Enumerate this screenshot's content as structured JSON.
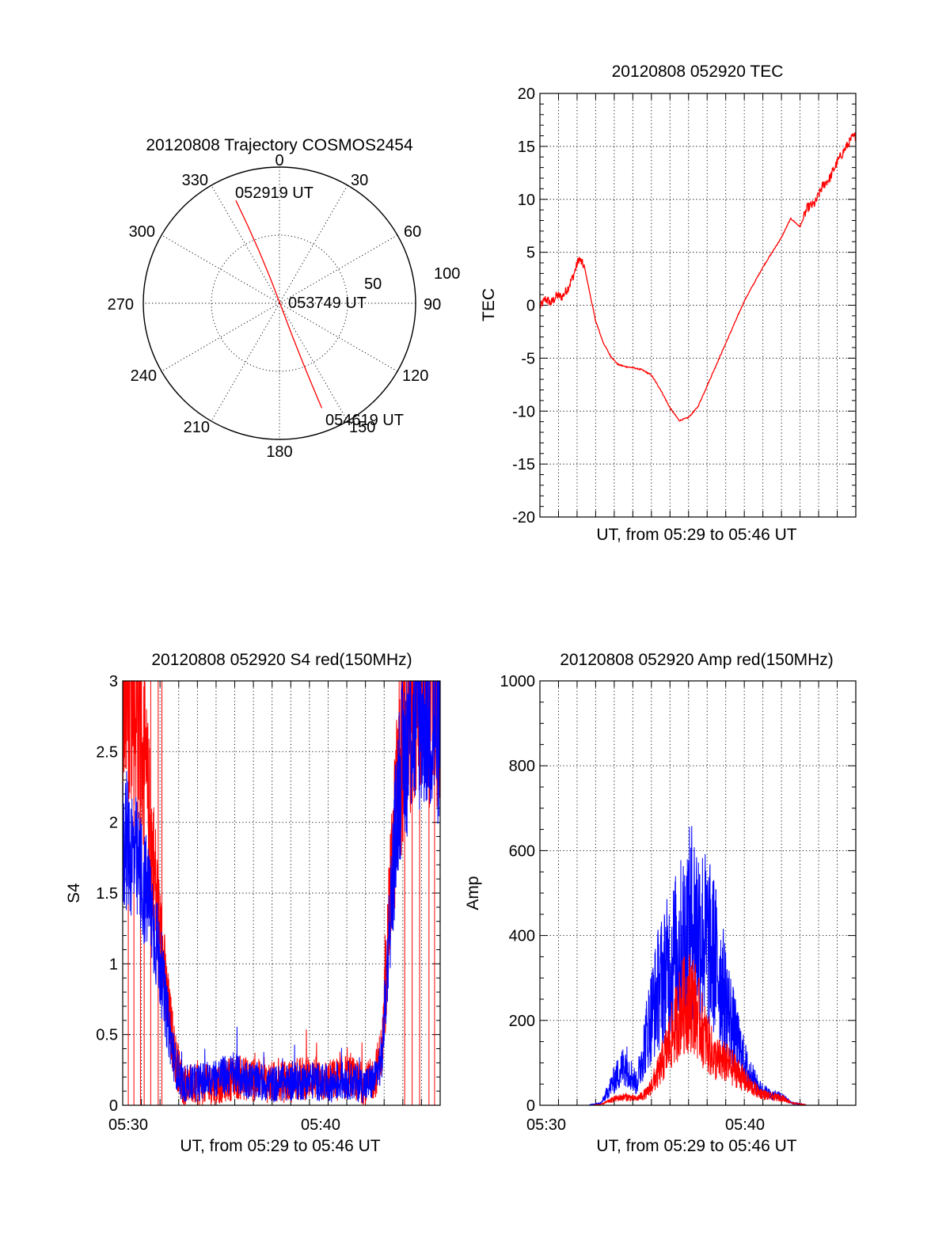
{
  "panels": {
    "polar": {
      "title": "20120808 Trajectory COSMOS2454",
      "azimuth_labels": [
        "0",
        "30",
        "60",
        "90",
        "120",
        "150",
        "180",
        "210",
        "240",
        "270",
        "300",
        "330"
      ],
      "radius_labels": [
        "50",
        "100"
      ],
      "start_label": "052919 UT",
      "mid_label": "053749 UT",
      "end_label": "054619 UT"
    },
    "tec": {
      "title": "20120808 052920 TEC",
      "ylabel": "TEC",
      "xlabel": "UT, from 05:29 to 05:46 UT",
      "yticks": [
        "-20",
        "-15",
        "-10",
        "-5",
        "0",
        "5",
        "10",
        "15",
        "20"
      ]
    },
    "s4": {
      "title": "20120808 052920 S4 red(150MHz)",
      "ylabel": "S4",
      "xlabel": "UT, from 05:29 to 05:46 UT",
      "yticks": [
        "0",
        "0.5",
        "1",
        "1.5",
        "2",
        "2.5",
        "3"
      ],
      "xticks": [
        "05:30",
        "05:40"
      ]
    },
    "amp": {
      "title": "20120808 052920 Amp red(150MHz)",
      "ylabel": "Amp",
      "xlabel": "UT, from 05:29 to 05:46 UT",
      "yticks": [
        "0",
        "200",
        "400",
        "600",
        "800",
        "1000"
      ],
      "xticks": [
        "05:30",
        "05:40"
      ]
    }
  },
  "colors": {
    "red": "#ff0000",
    "blue": "#0000ff",
    "axis": "#000000"
  },
  "chart_data": [
    {
      "type": "scatter",
      "title": "20120808 Trajectory COSMOS2454",
      "polar": true,
      "rlim": [
        0,
        100
      ],
      "points": [
        {
          "time": "052919 UT",
          "azimuth_deg": 337,
          "radius": 82
        },
        {
          "time": "053749 UT",
          "azimuth_deg": 150,
          "radius": 2
        },
        {
          "time": "054619 UT",
          "azimuth_deg": 158,
          "radius": 83
        }
      ],
      "series_color": "#ff0000"
    },
    {
      "type": "line",
      "title": "20120808 052920 TEC",
      "xlabel": "UT, from 05:29 to 05:46 UT",
      "ylabel": "TEC",
      "xlim": [
        0,
        17
      ],
      "ylim": [
        -20,
        20
      ],
      "x_unit": "minutes after 05:29:20 UT",
      "x": [
        0,
        0.3,
        0.6,
        0.9,
        1.2,
        1.5,
        1.8,
        2.1,
        2.4,
        2.7,
        3.0,
        3.4,
        3.8,
        4.2,
        4.6,
        5.0,
        5.5,
        6.0,
        6.5,
        7.0,
        7.5,
        8.0,
        8.5,
        9.0,
        9.5,
        10.0,
        10.5,
        11.0,
        11.5,
        12.0,
        12.5,
        13.0,
        13.5,
        14.0,
        14.4,
        14.8,
        15.2,
        15.6,
        16.0,
        16.4,
        16.8,
        17.0
      ],
      "y": [
        -0.2,
        0.6,
        0.2,
        0.9,
        0.8,
        1.6,
        2.8,
        4.4,
        3.6,
        1.0,
        -1.5,
        -3.5,
        -4.8,
        -5.6,
        -5.8,
        -5.9,
        -6.1,
        -6.6,
        -8.0,
        -9.7,
        -10.9,
        -10.6,
        -9.6,
        -7.6,
        -5.6,
        -3.6,
        -1.6,
        0.4,
        2.0,
        3.6,
        5.0,
        6.4,
        8.2,
        7.4,
        9.2,
        9.6,
        11.2,
        12.0,
        13.5,
        14.7,
        15.8,
        16.0
      ],
      "series_color": "#ff0000"
    },
    {
      "type": "line",
      "title": "20120808 052920 S4 red(150MHz)",
      "xlabel": "UT, from 05:29 to 05:46 UT",
      "ylabel": "S4",
      "xlim": [
        0,
        17
      ],
      "ylim": [
        0,
        3
      ],
      "x_unit": "minutes after 05:29:20 UT",
      "x": [
        0,
        0.5,
        1.0,
        1.5,
        2.0,
        2.4,
        2.8,
        3.2,
        4,
        5,
        6,
        7,
        8,
        9,
        10,
        11,
        12,
        13,
        13.5,
        13.9,
        14.3,
        14.8,
        15.5,
        16.2,
        17.0
      ],
      "series": [
        {
          "values": [
            2.9,
            3.0,
            2.6,
            1.9,
            1.2,
            0.7,
            0.35,
            0.15,
            0.14,
            0.15,
            0.2,
            0.18,
            0.16,
            0.17,
            0.2,
            0.17,
            0.2,
            0.15,
            0.2,
            0.4,
            1.4,
            2.4,
            2.9,
            3.0,
            2.8
          ],
          "color": "#ff0000"
        },
        {
          "values": [
            1.9,
            1.8,
            1.6,
            1.4,
            1.0,
            0.6,
            0.3,
            0.15,
            0.16,
            0.2,
            0.22,
            0.17,
            0.15,
            0.16,
            0.18,
            0.15,
            0.18,
            0.14,
            0.18,
            0.35,
            1.3,
            2.3,
            2.7,
            2.8,
            2.6
          ],
          "color": "#0000ff"
        }
      ]
    },
    {
      "type": "line",
      "title": "20120808 052920 Amp red(150MHz)",
      "xlabel": "UT, from 05:29 to 05:46 UT",
      "ylabel": "Amp",
      "xlim": [
        0,
        17
      ],
      "ylim": [
        0,
        1000
      ],
      "x_unit": "minutes after 05:29:20 UT",
      "x": [
        0,
        2.5,
        3.3,
        4,
        4.6,
        5.2,
        5.8,
        6.4,
        7.0,
        7.6,
        8.2,
        8.8,
        9.4,
        10.0,
        10.6,
        11.2,
        11.8,
        12.4,
        13.0,
        13.6,
        14.5,
        17.0
      ],
      "series": [
        {
          "values": [
            0,
            0,
            2,
            15,
            20,
            15,
            30,
            80,
            150,
            230,
            250,
            170,
            110,
            100,
            80,
            50,
            30,
            20,
            18,
            5,
            0,
            0
          ],
          "color": "#ff0000"
        },
        {
          "values": [
            0,
            0,
            5,
            60,
            100,
            50,
            180,
            280,
            330,
            380,
            440,
            400,
            350,
            250,
            150,
            80,
            40,
            25,
            20,
            5,
            0,
            0
          ],
          "color": "#0000ff"
        }
      ]
    }
  ]
}
